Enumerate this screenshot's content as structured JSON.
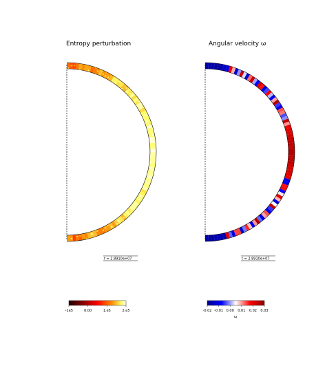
{
  "chart_data": [
    {
      "type": "heatmap",
      "title": "Entropy perturbation",
      "geometry": "meridional half-shell (thin convective shell)",
      "colormap": {
        "name": "hot",
        "stops": [
          "#200000",
          "#8b0000",
          "#ff0000",
          "#ff8c00",
          "#ffff66",
          "#ffffff"
        ],
        "tick_labels": [
          "–1e5",
          "0.00",
          "1.e5",
          "2.e5"
        ]
      },
      "time_label": "t = 2.8910e+07",
      "features": [
        {
          "region": "pole caps",
          "value_level": "medium-high",
          "color": "red"
        },
        {
          "region": "mid latitudes",
          "value_level": "high",
          "color": "orange"
        },
        {
          "region": "equator",
          "value_level": "highest",
          "color": "yellow"
        }
      ]
    },
    {
      "type": "heatmap",
      "title": "Angular velocity ω",
      "geometry": "meridional half-shell (thin convective shell)",
      "colormap": {
        "name": "blue-white-red",
        "stops": [
          "#00008b",
          "#0000ff",
          "#ffffff",
          "#ff0000",
          "#8b0000"
        ],
        "tick_labels": [
          "-0.02",
          "-0.01",
          "0.00",
          "0.01",
          "0.02",
          "0.03"
        ],
        "unit": "ω"
      },
      "time_label": "t = 2.8910e+07",
      "features": [
        {
          "region": "pole caps",
          "value_level": "negative",
          "color": "dark blue"
        },
        {
          "region": "mid latitudes",
          "value_level": "alternating bands",
          "color": "blue/white/red"
        },
        {
          "region": "equator",
          "value_level": "strongly positive",
          "color": "dark red"
        }
      ]
    }
  ]
}
